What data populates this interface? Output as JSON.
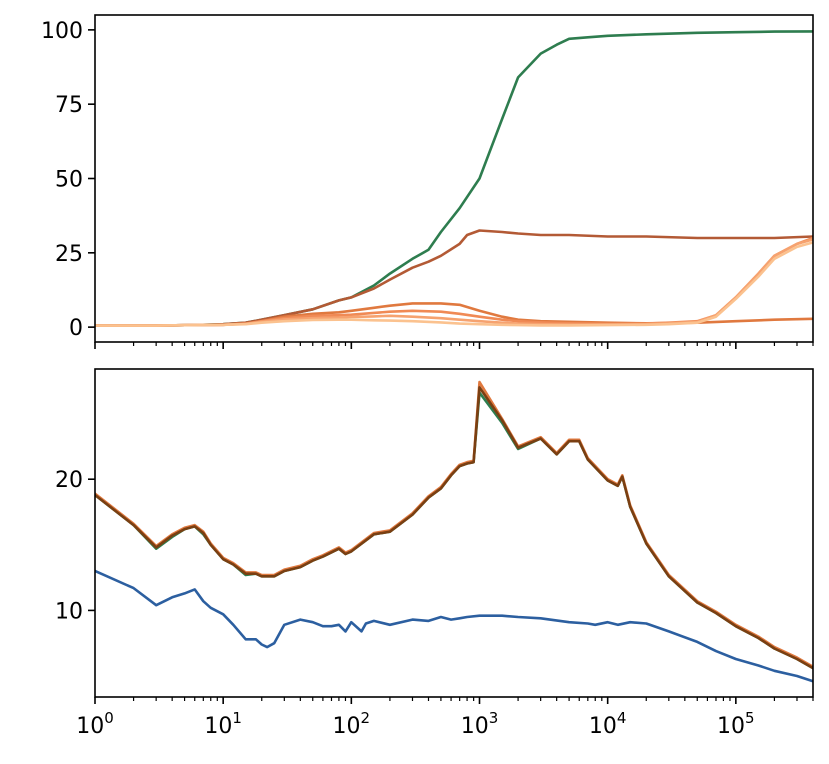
{
  "chart_data": [
    {
      "type": "line",
      "title": "",
      "xlabel": "",
      "ylabel": "",
      "xscale": "log",
      "xlim": [
        1,
        400000
      ],
      "ylim": [
        -5,
        105
      ],
      "grid": false,
      "x_tick_labels": [],
      "y_ticks": [
        0,
        25,
        50,
        75,
        100
      ],
      "y_tick_labels": [
        "0",
        "25",
        "50",
        "75",
        "100"
      ],
      "series": [
        {
          "color": "#2e7d4f",
          "x": [
            1,
            3,
            6,
            10,
            15,
            20,
            30,
            50,
            80,
            100,
            150,
            200,
            300,
            400,
            500,
            700,
            1000,
            1500,
            2000,
            3000,
            4000,
            5000,
            7000,
            10000,
            20000,
            50000,
            100000,
            200000,
            400000
          ],
          "y": [
            0.5,
            0.5,
            0.7,
            1,
            1.5,
            2.5,
            4,
            6,
            9,
            10,
            14,
            18,
            23,
            26,
            32,
            40,
            50,
            70,
            84,
            92,
            95,
            97,
            97.5,
            98,
            98.5,
            99,
            99.2,
            99.4,
            99.5
          ]
        },
        {
          "color": "#b35a35",
          "x": [
            1,
            3,
            6,
            10,
            15,
            20,
            30,
            50,
            80,
            100,
            150,
            200,
            300,
            400,
            500,
            700,
            800,
            1000,
            1500,
            2000,
            3000,
            5000,
            10000,
            20000,
            50000,
            100000,
            200000,
            400000
          ],
          "y": [
            0.5,
            0.5,
            0.7,
            1,
            1.5,
            2.5,
            4,
            6,
            9,
            10,
            13,
            16,
            20,
            22,
            24,
            28,
            31,
            32.5,
            32,
            31.5,
            31,
            31,
            30.5,
            30.5,
            30,
            30,
            30,
            30.5
          ]
        },
        {
          "color": "#e0793f",
          "x": [
            1,
            3,
            6,
            10,
            15,
            20,
            30,
            50,
            80,
            100,
            150,
            200,
            300,
            500,
            700,
            1000,
            1500,
            2000,
            3000,
            5000,
            10000,
            20000,
            50000,
            100000,
            200000,
            400000
          ],
          "y": [
            0.5,
            0.5,
            0.7,
            0.8,
            1.2,
            2,
            3.5,
            4.5,
            5,
            5.5,
            6.5,
            7.2,
            8,
            8,
            7.5,
            5.5,
            3.5,
            2.5,
            2,
            1.8,
            1.5,
            1.3,
            1.5,
            2,
            2.5,
            2.8
          ]
        },
        {
          "color": "#f08a55",
          "x": [
            1,
            3,
            6,
            10,
            15,
            20,
            30,
            50,
            80,
            100,
            150,
            200,
            300,
            500,
            700,
            1000,
            1500,
            2000,
            3000,
            5000,
            10000,
            20000,
            30000,
            50000,
            70000,
            100000,
            150000,
            200000,
            300000,
            400000
          ],
          "y": [
            0.5,
            0.5,
            0.7,
            0.8,
            1.2,
            2,
            3,
            3.8,
            4,
            4.2,
            4.8,
            5.2,
            5.5,
            5.2,
            4.5,
            3.5,
            2.5,
            2,
            1.6,
            1.3,
            1.1,
            1.2,
            1.5,
            2,
            4,
            10,
            18,
            24,
            28,
            30
          ]
        },
        {
          "color": "#f6a26f",
          "x": [
            1,
            3,
            6,
            10,
            15,
            20,
            30,
            50,
            80,
            100,
            150,
            200,
            300,
            500,
            700,
            1000,
            1500,
            2000,
            3000,
            5000,
            10000,
            20000,
            30000,
            50000,
            70000,
            100000,
            150000,
            200000,
            300000,
            400000
          ],
          "y": [
            0.5,
            0.5,
            0.7,
            0.8,
            1.1,
            1.8,
            2.6,
            3,
            3.2,
            3.4,
            3.6,
            3.8,
            3.5,
            3,
            2.5,
            2,
            1.5,
            1.2,
            1,
            0.9,
            0.9,
            1,
            1.3,
            1.8,
            4,
            10,
            18,
            24,
            28,
            29.5
          ]
        },
        {
          "color": "#fbc28f",
          "x": [
            1,
            3,
            6,
            10,
            15,
            20,
            30,
            50,
            80,
            100,
            150,
            200,
            300,
            500,
            700,
            1000,
            1500,
            2000,
            3000,
            5000,
            10000,
            20000,
            30000,
            50000,
            70000,
            100000,
            150000,
            200000,
            300000,
            400000
          ],
          "y": [
            0.5,
            0.5,
            0.7,
            0.8,
            1,
            1.5,
            2,
            2.4,
            2.5,
            2.5,
            2.3,
            2.2,
            2,
            1.6,
            1.2,
            1,
            0.8,
            0.7,
            0.6,
            0.6,
            0.7,
            0.8,
            1,
            1.5,
            3.5,
            9.5,
            17,
            23,
            27,
            28.5
          ]
        }
      ]
    },
    {
      "type": "line",
      "title": "",
      "xlabel": "",
      "ylabel": "",
      "xscale": "log",
      "xlim": [
        1,
        400000
      ],
      "ylim": [
        3.4,
        28.4
      ],
      "grid": false,
      "x_tick_labels": [
        "10^0",
        "10^1",
        "10^2",
        "10^3",
        "10^4",
        "10^5"
      ],
      "x_tick_base": "10",
      "x_tick_exponents": [
        "0",
        "1",
        "2",
        "3",
        "4",
        "5"
      ],
      "y_ticks": [
        10,
        20
      ],
      "y_tick_labels": [
        "10",
        "20"
      ],
      "series": [
        {
          "color": "#2e7d4f",
          "x": [
            1,
            2,
            3,
            4,
            5,
            6,
            7,
            8,
            10,
            12,
            15,
            18,
            20,
            25,
            30,
            40,
            50,
            60,
            80,
            90,
            100,
            150,
            200,
            300,
            400,
            500,
            600,
            700,
            800,
            900,
            1000,
            1500,
            2000,
            3000,
            4000,
            5000,
            6000,
            7000,
            10000,
            12000,
            13000,
            15000,
            20000,
            30000,
            50000,
            70000,
            100000,
            150000,
            200000,
            300000,
            400000
          ],
          "y": [
            18.8,
            16.5,
            14.7,
            15.6,
            16.2,
            16.4,
            15.8,
            15,
            13.9,
            13.5,
            12.7,
            12.8,
            12.6,
            12.6,
            13,
            13.3,
            13.8,
            14.1,
            14.7,
            14.3,
            14.5,
            15.8,
            16,
            17.3,
            18.6,
            19.3,
            20.3,
            21,
            21.2,
            21.3,
            26.6,
            24.3,
            22.3,
            23.1,
            21.9,
            22.9,
            22.9,
            21.5,
            19.9,
            19.5,
            20.2,
            17.9,
            15.1,
            12.6,
            10.6,
            9.8,
            8.8,
            7.9,
            7.1,
            6.3,
            5.6
          ]
        },
        {
          "color": "#e0793f",
          "x": [
            1,
            2,
            3,
            4,
            5,
            6,
            7,
            8,
            10,
            12,
            15,
            18,
            20,
            25,
            30,
            40,
            50,
            60,
            80,
            90,
            100,
            150,
            200,
            300,
            400,
            500,
            600,
            700,
            800,
            900,
            1000,
            1500,
            2000,
            3000,
            4000,
            5000,
            6000,
            7000,
            10000,
            12000,
            13000,
            15000,
            20000,
            30000,
            50000,
            70000,
            100000,
            150000,
            200000,
            300000,
            400000
          ],
          "y": [
            18.9,
            16.6,
            14.9,
            15.8,
            16.3,
            16.5,
            16,
            15.1,
            14,
            13.6,
            12.9,
            12.9,
            12.7,
            12.7,
            13.1,
            13.4,
            13.9,
            14.2,
            14.8,
            14.4,
            14.6,
            15.9,
            16.1,
            17.4,
            18.7,
            19.4,
            20.4,
            21.1,
            21.3,
            21.4,
            27.4,
            24.6,
            22.5,
            23.2,
            22,
            23,
            23,
            21.6,
            20,
            19.6,
            20.3,
            18,
            15.2,
            12.7,
            10.7,
            9.9,
            8.9,
            8,
            7.2,
            6.4,
            5.7
          ]
        },
        {
          "color": "#7a3f12",
          "x": [
            1,
            2,
            3,
            4,
            5,
            6,
            7,
            8,
            10,
            12,
            15,
            18,
            20,
            25,
            30,
            40,
            50,
            60,
            80,
            90,
            100,
            150,
            200,
            300,
            400,
            500,
            600,
            700,
            800,
            900,
            1000,
            1500,
            2000,
            3000,
            4000,
            5000,
            6000,
            7000,
            10000,
            12000,
            13000,
            15000,
            20000,
            30000,
            50000,
            70000,
            100000,
            150000,
            200000,
            300000,
            400000
          ],
          "y": [
            18.8,
            16.5,
            14.8,
            15.7,
            16.2,
            16.4,
            15.9,
            15,
            13.9,
            13.5,
            12.8,
            12.8,
            12.6,
            12.6,
            13,
            13.3,
            13.8,
            14.1,
            14.7,
            14.3,
            14.5,
            15.8,
            16,
            17.3,
            18.6,
            19.3,
            20.3,
            21,
            21.2,
            21.3,
            27,
            24.5,
            22.4,
            23.1,
            21.9,
            22.9,
            22.9,
            21.5,
            19.9,
            19.5,
            20.2,
            17.9,
            15.1,
            12.6,
            10.6,
            9.8,
            8.8,
            7.9,
            7.1,
            6.3,
            5.6
          ]
        },
        {
          "color": "#2c5fa0",
          "x": [
            1,
            2,
            3,
            4,
            5,
            6,
            7,
            8,
            10,
            12,
            15,
            18,
            20,
            22,
            25,
            30,
            40,
            50,
            60,
            70,
            80,
            90,
            100,
            120,
            130,
            150,
            200,
            300,
            400,
            500,
            600,
            700,
            800,
            1000,
            1500,
            2000,
            3000,
            5000,
            7000,
            8000,
            10000,
            12000,
            15000,
            20000,
            30000,
            50000,
            70000,
            100000,
            150000,
            200000,
            300000,
            400000
          ],
          "y": [
            13,
            11.7,
            10.4,
            11,
            11.3,
            11.6,
            10.7,
            10.2,
            9.7,
            8.9,
            7.8,
            7.8,
            7.4,
            7.2,
            7.5,
            8.9,
            9.3,
            9.1,
            8.8,
            8.8,
            8.9,
            8.4,
            9.1,
            8.4,
            9,
            9.2,
            8.9,
            9.3,
            9.2,
            9.5,
            9.3,
            9.4,
            9.5,
            9.6,
            9.6,
            9.5,
            9.4,
            9.1,
            9,
            8.9,
            9.1,
            8.9,
            9.1,
            9,
            8.4,
            7.6,
            6.9,
            6.3,
            5.8,
            5.4,
            5,
            4.6
          ]
        }
      ]
    }
  ]
}
